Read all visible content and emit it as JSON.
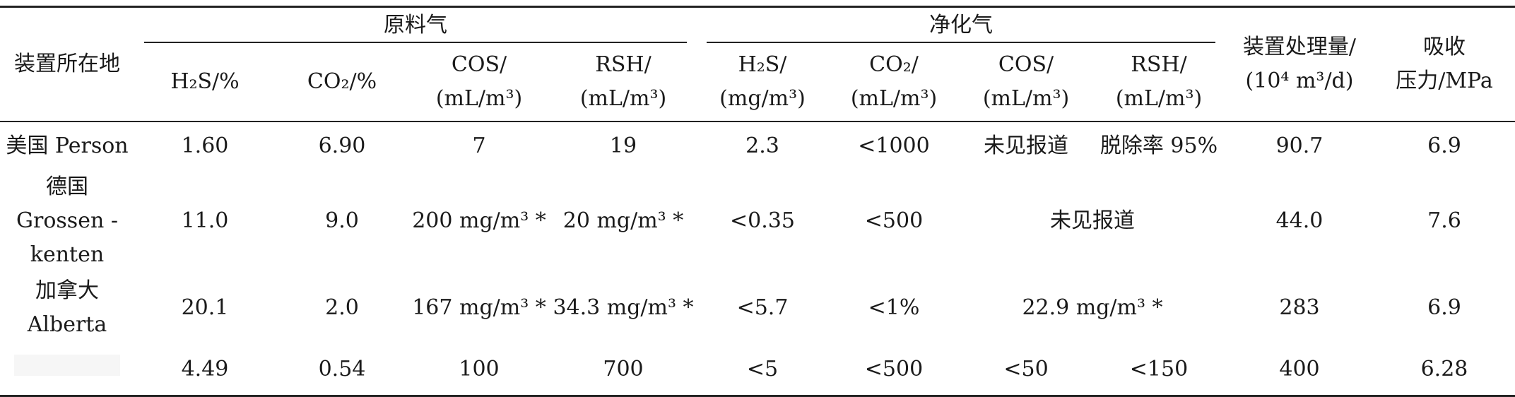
{
  "header": {
    "location": "装置所在地",
    "feed_gas": "原料气",
    "purified_gas": "净化气",
    "capacity": "装置处理量/(10⁴ m³/d)",
    "capacity_l1": "装置处理量/",
    "capacity_l2": "(10⁴ m³/d)",
    "absorb_l1": "吸收",
    "absorb_l2": "压力/MPa",
    "feed_cols": [
      {
        "l1": "H₂S/%",
        "l2": ""
      },
      {
        "l1": "CO₂/%",
        "l2": ""
      },
      {
        "l1": "COS/",
        "l2": "(mL/m³)"
      },
      {
        "l1": "RSH/",
        "l2": "(mL/m³)"
      }
    ],
    "pure_cols": [
      {
        "l1": "H₂S/",
        "l2": "(mg/m³)"
      },
      {
        "l1": "CO₂/",
        "l2": "(mL/m³)"
      },
      {
        "l1": "COS/",
        "l2": "(mL/m³)"
      },
      {
        "l1": "RSH/",
        "l2": "(mL/m³)"
      }
    ]
  },
  "rows": [
    {
      "loc_l1": "美国 Person",
      "loc_l2": "",
      "cells": [
        "1.60",
        "6.90",
        "7",
        "19",
        "2.3",
        "<1000",
        "未见报道",
        "脱除率 95%",
        "90.7",
        "6.9"
      ]
    },
    {
      "loc_l1": "德国 Grossen -",
      "loc_l2": "kenten",
      "cells": [
        "11.0",
        "9.0",
        "200 mg/m³ *",
        "20 mg/m³ *",
        "<0.35",
        "<500",
        "未见报道",
        "44.0",
        "7.6"
      ]
    },
    {
      "loc_l1": "加拿大",
      "loc_l2": "Alberta",
      "cells": [
        "20.1",
        "2.0",
        "167 mg/m³ *",
        "34.3 mg/m³ *",
        "<5.7",
        "<1%",
        "22.9 mg/m³ *",
        "283",
        "6.9"
      ]
    },
    {
      "loc_l1": "",
      "loc_l2": "",
      "cells": [
        "4.49",
        "0.54",
        "100",
        "700",
        "<5",
        "<500",
        "<50",
        "<150",
        "400",
        "6.28"
      ]
    }
  ]
}
